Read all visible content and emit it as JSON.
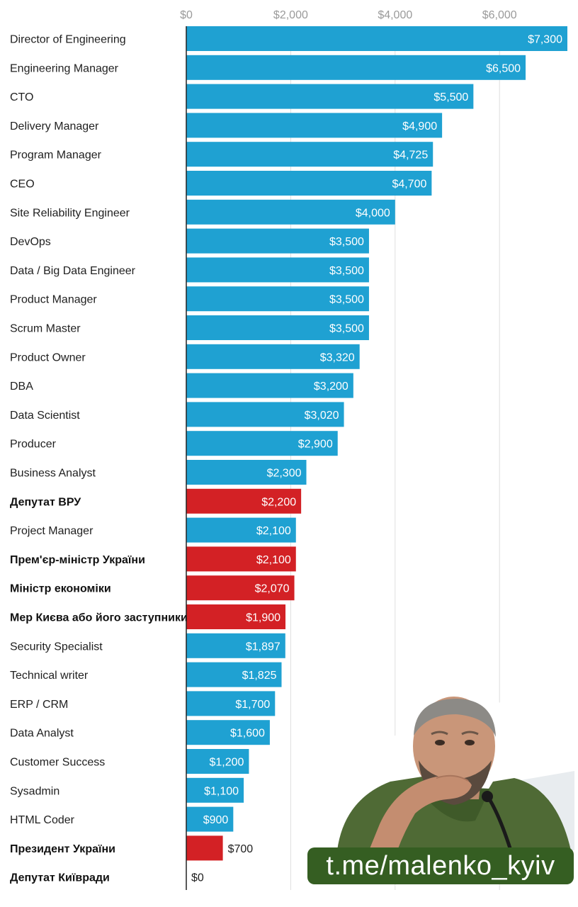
{
  "chart_data": {
    "type": "bar",
    "orientation": "horizontal",
    "title": "",
    "xlabel": "",
    "ylabel": "",
    "xlim": [
      0,
      7300
    ],
    "grid": true,
    "ticks": [
      {
        "value": 0,
        "label": "$0"
      },
      {
        "value": 2000,
        "label": "$2,000"
      },
      {
        "value": 4000,
        "label": "$4,000"
      },
      {
        "value": 6000,
        "label": "$6,000"
      }
    ],
    "colors": {
      "it": "#1fa1d2",
      "official": "#d32125",
      "grid": "#dedede",
      "axis": "#222222"
    },
    "bars": [
      {
        "label": "Director of Engineering",
        "value": 7300,
        "value_label": "$7,300",
        "group": "it"
      },
      {
        "label": "Engineering Manager",
        "value": 6500,
        "value_label": "$6,500",
        "group": "it"
      },
      {
        "label": "CTO",
        "value": 5500,
        "value_label": "$5,500",
        "group": "it"
      },
      {
        "label": "Delivery Manager",
        "value": 4900,
        "value_label": "$4,900",
        "group": "it"
      },
      {
        "label": "Program Manager",
        "value": 4725,
        "value_label": "$4,725",
        "group": "it"
      },
      {
        "label": "CEO",
        "value": 4700,
        "value_label": "$4,700",
        "group": "it"
      },
      {
        "label": "Site Reliability Engineer",
        "value": 4000,
        "value_label": "$4,000",
        "group": "it"
      },
      {
        "label": "DevOps",
        "value": 3500,
        "value_label": "$3,500",
        "group": "it"
      },
      {
        "label": "Data / Big Data Engineer",
        "value": 3500,
        "value_label": "$3,500",
        "group": "it"
      },
      {
        "label": "Product Manager",
        "value": 3500,
        "value_label": "$3,500",
        "group": "it"
      },
      {
        "label": "Scrum Master",
        "value": 3500,
        "value_label": "$3,500",
        "group": "it"
      },
      {
        "label": "Product Owner",
        "value": 3320,
        "value_label": "$3,320",
        "group": "it"
      },
      {
        "label": "DBA",
        "value": 3200,
        "value_label": "$3,200",
        "group": "it"
      },
      {
        "label": "Data Scientist",
        "value": 3020,
        "value_label": "$3,020",
        "group": "it"
      },
      {
        "label": "Producer",
        "value": 2900,
        "value_label": "$2,900",
        "group": "it"
      },
      {
        "label": "Business Analyst",
        "value": 2300,
        "value_label": "$2,300",
        "group": "it"
      },
      {
        "label": "Депутат ВРУ",
        "value": 2200,
        "value_label": "$2,200",
        "group": "official"
      },
      {
        "label": "Project Manager",
        "value": 2100,
        "value_label": "$2,100",
        "group": "it"
      },
      {
        "label": "Прем'єр-міністр України",
        "value": 2100,
        "value_label": "$2,100",
        "group": "official"
      },
      {
        "label": "Міністр економіки",
        "value": 2070,
        "value_label": "$2,070",
        "group": "official"
      },
      {
        "label": "Мер Києва або його заступники",
        "value": 1900,
        "value_label": "$1,900",
        "group": "official"
      },
      {
        "label": "Security Specialist",
        "value": 1897,
        "value_label": "$1,897",
        "group": "it"
      },
      {
        "label": "Technical writer",
        "value": 1825,
        "value_label": "$1,825",
        "group": "it"
      },
      {
        "label": "ERP / CRM",
        "value": 1700,
        "value_label": "$1,700",
        "group": "it"
      },
      {
        "label": "Data Analyst",
        "value": 1600,
        "value_label": "$1,600",
        "group": "it"
      },
      {
        "label": "Customer Success",
        "value": 1200,
        "value_label": "$1,200",
        "group": "it"
      },
      {
        "label": "Sysadmin",
        "value": 1100,
        "value_label": "$1,100",
        "group": "it"
      },
      {
        "label": "HTML Coder",
        "value": 900,
        "value_label": "$900",
        "group": "it"
      },
      {
        "label": "Президент України",
        "value": 700,
        "value_label": "$700",
        "group": "official"
      },
      {
        "label": "Депутат Київради",
        "value": 0,
        "value_label": "$0",
        "group": "official"
      }
    ]
  },
  "watermark": {
    "text": "t.me/malenko_kyiv"
  }
}
